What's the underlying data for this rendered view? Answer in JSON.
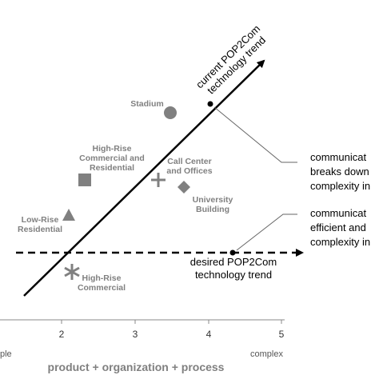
{
  "trend_current": [
    "current POP2Com",
    "technology trend"
  ],
  "trend_desired": [
    "desired POP2Com",
    "technology trend"
  ],
  "buildings": {
    "stadium": [
      "Stadium"
    ],
    "high_rise_mixed": [
      "High-Rise",
      "Commercial and",
      "Residential"
    ],
    "call_center": [
      "Call Center",
      "and Offices"
    ],
    "university": [
      "University",
      "Building"
    ],
    "low_rise": [
      "Low-Rise",
      "Residential"
    ],
    "high_rise_commercial": [
      "High-Rise",
      "Commercial"
    ]
  },
  "callouts": [
    [
      "communicat",
      "breaks down",
      "complexity in"
    ],
    [
      "communicat",
      "efficient and",
      "complexity in"
    ]
  ],
  "axis": {
    "ticks": [
      "2",
      "3",
      "4",
      "5"
    ],
    "left_end": "ple",
    "right_end": "complex",
    "label": "product + organization + process"
  }
}
